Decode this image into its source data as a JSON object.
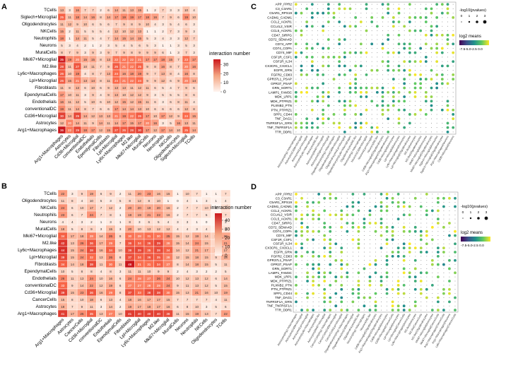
{
  "chart_data": [
    {
      "panel": "A",
      "type": "heatmap",
      "legend_title": "interaction number",
      "legend_ticks": [
        30,
        20,
        10,
        0
      ],
      "rows": [
        "TCells",
        "Siglech+Microglial",
        "Oligodendrocytes",
        "NKCells",
        "Neutrophils",
        "Neurons",
        "MuralCells",
        "Mki67+Microglial",
        "M2.like",
        "Ly6c+Macrophages",
        "Lpl+Microglial",
        "Fibroblasts",
        "EpendymalCells",
        "Endothelials",
        "conventionalDC",
        "Cd36+Microglial",
        "Astrocytes",
        "Arg1+Macrophages"
      ],
      "cols": [
        "Arg1+Macrophages",
        "Astrocytes",
        "Cd36+Microglial",
        "conventionalDC",
        "Endothelials",
        "EpendymalCells",
        "Fibroblasts",
        "Lpl+Microglial",
        "Ly6c+Macrophages",
        "M2.like",
        "Mki67+Microglial",
        "MuralCells",
        "Neurons",
        "Neutrophils",
        "NKCells",
        "Oligodendrocytes",
        "Siglech+Microglial",
        "TCells"
      ],
      "values": [
        [
          13,
          3,
          16,
          7,
          7,
          2,
          6,
          14,
          11,
          13,
          15,
          1,
          2,
          7,
          3,
          3,
          10,
          4
        ],
        [
          25,
          11,
          18,
          14,
          16,
          8,
          14,
          17,
          19,
          19,
          17,
          18,
          16,
          7,
          9,
          6,
          19,
          10
        ],
        [
          11,
          12,
          9,
          10,
          6,
          5,
          6,
          7,
          9,
          8,
          9,
          10,
          4,
          3,
          5,
          4,
          6,
          3
        ],
        [
          15,
          2,
          11,
          5,
          5,
          5,
          4,
          12,
          10,
          12,
          13,
          1,
          1,
          2,
          7,
          3,
          9,
          3
        ],
        [
          18,
          1,
          14,
          11,
          5,
          4,
          7,
          14,
          15,
          14,
          15,
          5,
          3,
          4,
          3,
          3,
          12,
          7
        ],
        [
          5,
          3,
          4,
          2,
          1,
          2,
          3,
          5,
          4,
          5,
          6,
          5,
          3,
          1,
          1,
          3,
          5,
          3
        ],
        [
          8,
          7,
          9,
          3,
          9,
          3,
          9,
          7,
          9,
          8,
          9,
          9,
          9,
          6,
          1,
          3,
          7,
          3
        ],
        [
          35,
          19,
          20,
          15,
          15,
          8,
          13,
          22,
          22,
          22,
          21,
          17,
          17,
          18,
          15,
          7,
          23,
          17
        ],
        [
          28,
          11,
          27,
          10,
          11,
          7,
          9,
          26,
          21,
          22,
          25,
          9,
          8,
          16,
          8,
          7,
          20,
          16
        ],
        [
          26,
          10,
          19,
          4,
          8,
          7,
          13,
          24,
          16,
          18,
          19,
          9,
          7,
          13,
          8,
          4,
          16,
          8
        ],
        [
          26,
          15,
          21,
          13,
          14,
          8,
          11,
          24,
          21,
          22,
          24,
          9,
          9,
          12,
          6,
          9,
          20,
          14
        ],
        [
          11,
          8,
          13,
          6,
          10,
          6,
          9,
          13,
          13,
          11,
          12,
          11,
          6,
          5,
          4,
          7,
          9,
          6
        ],
        [
          17,
          10,
          11,
          3,
          9,
          4,
          9,
          13,
          10,
          12,
          12,
          9,
          3,
          5,
          5,
          5,
          8,
          6
        ],
        [
          16,
          11,
          12,
          5,
          10,
          6,
          10,
          12,
          15,
          12,
          15,
          11,
          6,
          3,
          6,
          8,
          11,
          4
        ],
        [
          19,
          11,
          14,
          8,
          7,
          6,
          6,
          17,
          14,
          14,
          13,
          10,
          6,
          6,
          6,
          6,
          12,
          8
        ],
        [
          30,
          14,
          29,
          14,
          12,
          13,
          13,
          21,
          19,
          22,
          26,
          17,
          10,
          17,
          12,
          9,
          24,
          15
        ],
        [
          12,
          20,
          14,
          11,
          9,
          14,
          11,
          14,
          17,
          15,
          17,
          20,
          16,
          3,
          5,
          16,
          13,
          11
        ],
        [
          36,
          22,
          29,
          18,
          17,
          12,
          15,
          27,
          26,
          28,
          30,
          17,
          12,
          17,
          14,
          10,
          25,
          14
        ]
      ]
    },
    {
      "panel": "B",
      "type": "heatmap",
      "legend_title": "interaction number",
      "legend_ticks": [
        40,
        30,
        20,
        10,
        0
      ],
      "rows": [
        "TCells",
        "Oligodendrocytes",
        "NKCells",
        "Neutrophils",
        "Neurons",
        "MuralCells",
        "Mki67+Microglial",
        "M2.like",
        "Ly6c+Macrophages",
        "Lpl+Microglial",
        "Fibroblasts",
        "EpendymalCells",
        "Endothelials",
        "conventionalDC",
        "Cd36+Microglial",
        "CancerCells",
        "Astrocytes",
        "Arg1+Macrophages"
      ],
      "cols": [
        "Arg1+Macrophages",
        "Astrocytes",
        "CancerCells",
        "Cd36+Microglial",
        "conventionalDC",
        "Endothelials",
        "EpendymalCells",
        "Fibroblasts",
        "Lpl+Microglial",
        "Ly6c+Macrophages",
        "M2.like",
        "Mki67+Microglial",
        "MuralCells",
        "Neurons",
        "Neutrophils",
        "NKCells",
        "Oligodendrocytes",
        "TCells"
      ],
      "values": [
        [
          22,
          3,
          9,
          19,
          6,
          9,
          2,
          11,
          20,
          23,
          16,
          15,
          1,
          10,
          7,
          1,
          1,
          7
        ],
        [
          11,
          8,
          4,
          10,
          5,
          3,
          5,
          8,
          12,
          8,
          10,
          1,
          0,
          4,
          1,
          3,
          1,
          4
        ],
        [
          24,
          6,
          10,
          17,
          7,
          12,
          2,
          20,
          20,
          19,
          20,
          16,
          2,
          7,
          7,
          10,
          0,
          7
        ],
        [
          23,
          6,
          7,
          24,
          7,
          8,
          1,
          19,
          19,
          21,
          22,
          16,
          2,
          7,
          7,
          5,
          1,
          7
        ],
        [
          4,
          4,
          3,
          2,
          1,
          3,
          1,
          8,
          3,
          6,
          5,
          4,
          3,
          3,
          1,
          0,
          0,
          3
        ],
        [
          18,
          5,
          8,
          9,
          3,
          15,
          3,
          20,
          10,
          13,
          12,
          12,
          4,
          4,
          3,
          4,
          1,
          5
        ],
        [
          34,
          17,
          18,
          28,
          14,
          26,
          8,
          30,
          28,
          31,
          30,
          25,
          15,
          12,
          19,
          14,
          10,
          20
        ],
        [
          42,
          13,
          26,
          36,
          17,
          29,
          7,
          36,
          34,
          36,
          39,
          28,
          15,
          14,
          24,
          15,
          8,
          21
        ],
        [
          44,
          15,
          24,
          38,
          16,
          34,
          10,
          38,
          39,
          35,
          38,
          34,
          14,
          12,
          21,
          17,
          12,
          17
        ],
        [
          39,
          15,
          24,
          32,
          13,
          26,
          8,
          37,
          34,
          36,
          35,
          28,
          12,
          15,
          18,
          15,
          9,
          18
        ],
        [
          34,
          14,
          18,
          38,
          11,
          30,
          11,
          48,
          31,
          31,
          34,
          27,
          8,
          14,
          18,
          15,
          5,
          11
        ],
        [
          10,
          5,
          8,
          8,
          4,
          8,
          3,
          11,
          11,
          10,
          9,
          9,
          2,
          4,
          3,
          2,
          2,
          5
        ],
        [
          26,
          11,
          13,
          24,
          10,
          16,
          6,
          24,
          28,
          27,
          26,
          24,
          10,
          12,
          13,
          12,
          6,
          14
        ],
        [
          33,
          9,
          14,
          22,
          12,
          19,
          6,
          27,
          27,
          28,
          28,
          24,
          9,
          11,
          13,
          12,
          5,
          15
        ],
        [
          39,
          15,
          23,
          36,
          16,
          29,
          8,
          37,
          33,
          38,
          38,
          30,
          15,
          13,
          21,
          16,
          10,
          19
        ],
        [
          15,
          8,
          10,
          18,
          6,
          13,
          4,
          18,
          16,
          17,
          17,
          15,
          7,
          7,
          7,
          7,
          4,
          11
        ],
        [
          18,
          7,
          9,
          11,
          3,
          14,
          2,
          19,
          17,
          18,
          17,
          16,
          6,
          8,
          10,
          3,
          5,
          6
        ],
        [
          41,
          17,
          25,
          35,
          13,
          27,
          10,
          41,
          40,
          40,
          40,
          38,
          11,
          15,
          19,
          13,
          7,
          22
        ]
      ]
    },
    {
      "panel": "C",
      "type": "scatter",
      "subtype": "dot-plot",
      "size_legend_title": "-log10(pvalues)",
      "size_legend_ticks": [
        "0",
        "1",
        "2",
        "3"
      ],
      "color_legend_title": "log2 means",
      "color_legend_ticks": "-7.5-5.0-2.5 0.0",
      "rows": [
        "APP_FPR2",
        "C3_C3AR1",
        "C5AR1_RPS19",
        "CADM1_CADM1",
        "CCL2_ACKR1",
        "CCL4L2_VSIR",
        "CCL5_ACKR1",
        "CD47_SIRPG",
        "CD72_SEMA4D",
        "CD74_APP",
        "CD74_COPA",
        "CD74_MIF",
        "CSF1R_CSF1",
        "CSF1R_IL34",
        "CX3CR1_CX3CL1",
        "EGFR_GRN",
        "FGFR2_CD83",
        "GPR37L1_PSAP",
        "GPR37_PSAP",
        "GRN_SORT1",
        "LAMP1_FAM3C",
        "MDK_LRP1",
        "MDK_PTPRZ1",
        "PLXNB2_PTN",
        "PTN_PTPRZ1",
        "SPP1_CD44",
        "TNF_DAG1",
        "TNFRSF1A_GRN",
        "TNF_TNFRSF1A",
        "TTR_DDR1"
      ],
      "cols": [
        "Astrocytes|Arg1+Macrophages",
        "Astrocytes|Cd36+Microglial",
        "Astrocytes|Lpl+Microglial",
        "Astrocytes|Ly6c+Macrophages",
        "Astrocytes|M2.like",
        "Astrocytes|Mki67+Microglial",
        "Astrocytes|Siglech+Microglial",
        "Oligodendrocytes|Arg1+Macrophages",
        "Oligodendrocytes|Cd36+Microglial",
        "Oligodendrocytes|Lpl+Microglial",
        "Oligodendrocytes|Ly6c+Macrophages",
        "Oligodendrocytes|M2.like",
        "Neurons|Arg1+Macrophages",
        "Neurons|Cd36+Microglial",
        "Neurons|Lpl+Microglial",
        "Neurons|M2.like",
        "Cd36+Microglial|Oligodendrocytes",
        "Arg1+Macrophages|Oligodendrocytes",
        "Cd36+Microglial|Astrocytes",
        "Lpl+Microglial|Astrocytes",
        "Ly6c+Macrophages|Astrocytes",
        "Lpl+Microglial|Oligodendrocytes",
        "M2.like|Astrocytes",
        "M2.like|Oligodendrocytes",
        "Mki67+Microglial|Astrocytes",
        "Mki67+Microglial|Oligodendrocytes",
        "Siglech+Microglial|Astrocytes",
        "Siglech+Microglial|Oligodendrocytes",
        "Arg1+Macrophages|Neurons",
        "Cd36+Microglial|Neurons"
      ]
    },
    {
      "panel": "D",
      "type": "scatter",
      "subtype": "dot-plot",
      "size_legend_title": "-log10(pvalues)",
      "size_legend_ticks": [
        "0",
        "1",
        "2",
        "3"
      ],
      "color_legend_title": "log2 means",
      "color_legend_ticks": "-7.5-5.0-2.5 0.0",
      "rows": [
        "APP_FPR2",
        "C3_C3AR1",
        "C5AR1_RPS19",
        "CADM1_CADM1",
        "CCL2_ACKR1",
        "CCL4L2_VSIR",
        "CCL5_ACKR1",
        "CD47_SIRPG",
        "CD72_SEMA4D",
        "CD74_COPA",
        "CD74_MIF",
        "CSF1R_CSF1",
        "CSF1R_IL34",
        "CX3CR1_CX3CL1",
        "EGFR_GRN",
        "FGFR2_CD83",
        "GPR37L1_PSAP",
        "GPR37_PSAP",
        "GRN_SORT1",
        "LAMP1_FAM3C",
        "MDK_LRP1",
        "MDK_PTPRZ1",
        "PLXNB2_PTN",
        "PTN_PTPRZ1",
        "SPP1_CD44",
        "TNF_DAG1",
        "TNFRSF1A_GRN",
        "TNF_TNFRSF1A",
        "TTR_DDR1"
      ],
      "cols": [
        "Astrocytes|Arg1+Macrophages",
        "Astrocytes|Cd36+Microglial",
        "Astrocytes|Lpl+Microglial",
        "Astrocytes|Ly6c+Macrophages",
        "Astrocytes|M2.like",
        "Astrocytes|Mki67+Microglial",
        "CancerCells|Arg1+Macrophages",
        "CancerCells|Cd36+Microglial",
        "CancerCells|Lpl+Microglial",
        "Oligodendrocytes|Arg1+Macrophages",
        "Oligodendrocytes|Cd36+Microglial",
        "Oligodendrocytes|M2.like",
        "Neurons|Arg1+Macrophages",
        "Neurons|M2.like",
        "Cd36+Microglial|Oligodendrocytes",
        "Arg1+Macrophages|Oligodendrocytes",
        "Cd36+Microglial|Astrocytes",
        "Cd36+Microglial|CancerCells",
        "Lpl+Microglial|Astrocytes",
        "Lpl+Microglial|CancerCells",
        "Ly6c+Macrophages|Astrocytes",
        "M2.like|Astrocytes",
        "M2.like|CancerCells",
        "M2.like|Oligodendrocytes",
        "Mki67+Microglial|Astrocytes",
        "Mki67+Microglial|CancerCells",
        "Arg1+Macrophages|CancerCells",
        "Arg1+Macrophages|Neurons",
        "Ly6c+Macrophages|CancerCells"
      ]
    }
  ],
  "colors": {
    "heat_low": "#fff5f0",
    "heat_high": "#cb181d",
    "dot_grid": "#d9d9d9",
    "viridis": [
      "#440154",
      "#3b528b",
      "#21918c",
      "#5ec962",
      "#fde725"
    ]
  }
}
